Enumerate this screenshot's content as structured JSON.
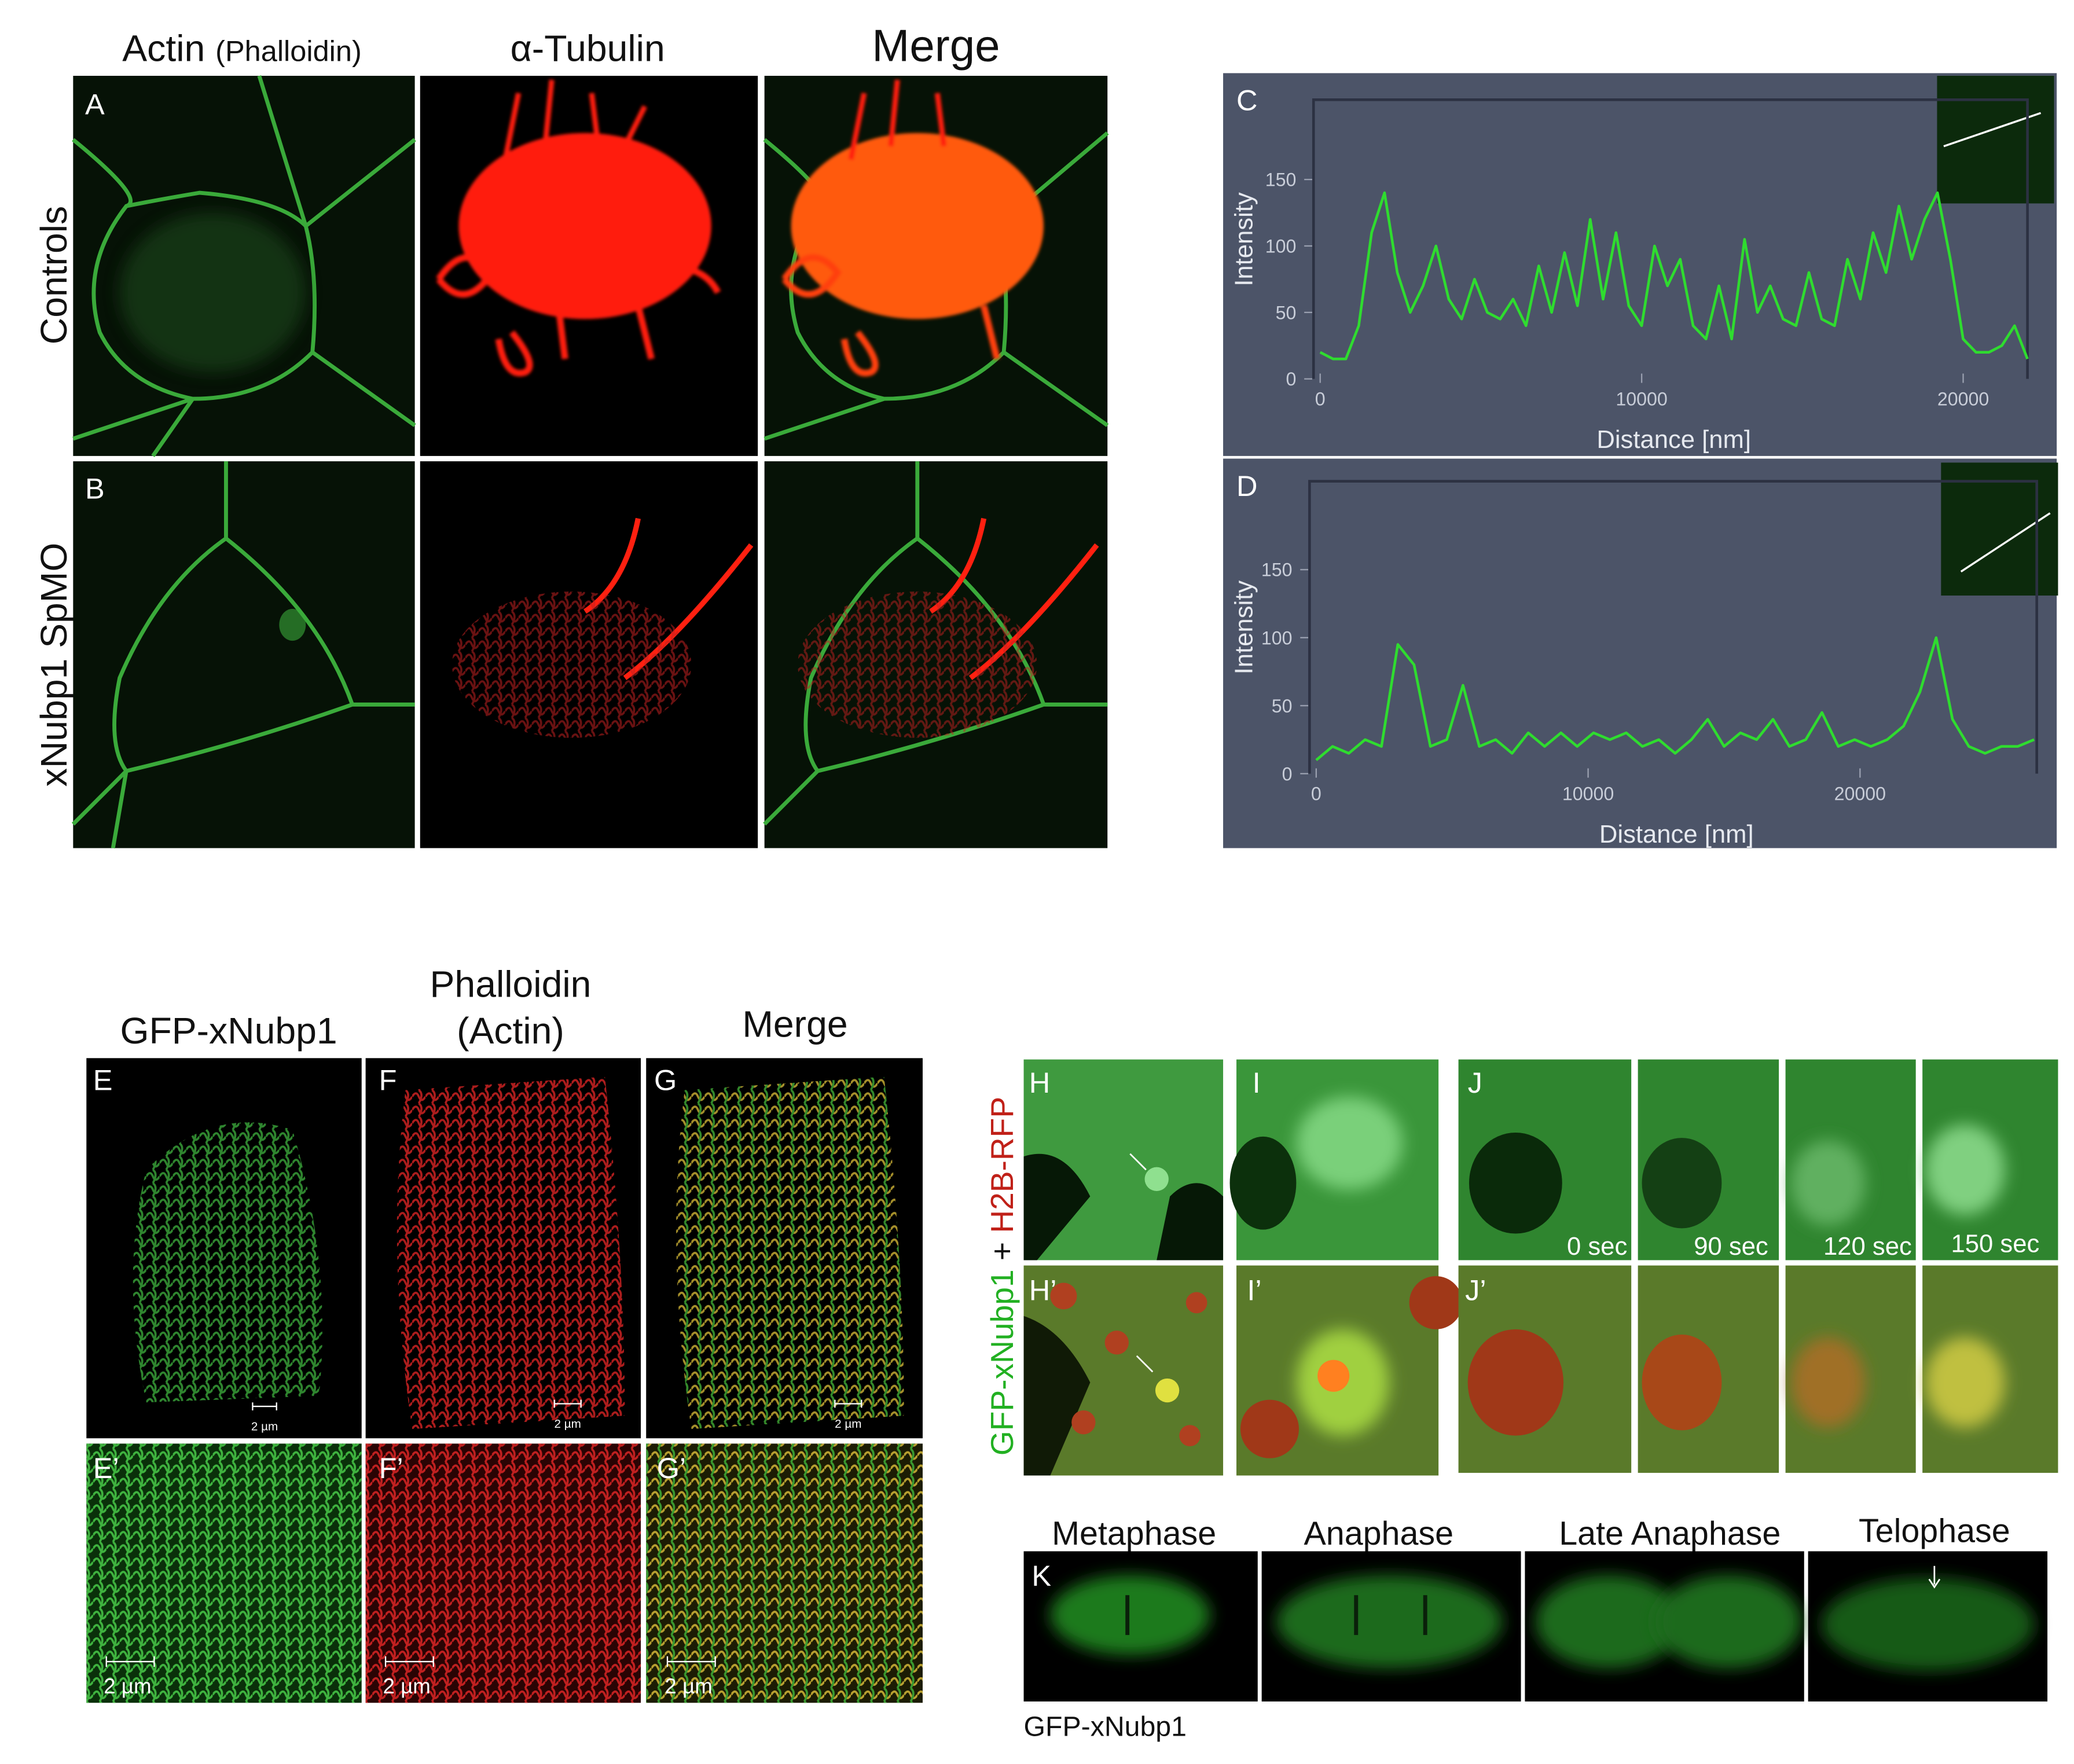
{
  "figure": {
    "actin_panel": {
      "column_titles": [
        "Actin",
        "(Phalloidin)",
        "α-Tubulin",
        "Merge"
      ],
      "row_labels": [
        "Controls",
        "xNubp1 SpMO"
      ],
      "panel_letters": [
        "A",
        "B"
      ]
    },
    "gfp_panel": {
      "column_titles": [
        "GFP-xNubp1",
        "Phalloidin",
        "(Actin)",
        "Merge"
      ],
      "panel_letters": [
        "E",
        "F",
        "G",
        "E’",
        "F’",
        "G’"
      ],
      "scale_bars": [
        "2 µm",
        "2 µm",
        "2 µm",
        "2 µm",
        "2 µm",
        "2 µm"
      ]
    },
    "live_panel": {
      "side_label": [
        "GFP-xNubp1",
        "+",
        "H2B-RFP"
      ],
      "panel_letters": [
        "H",
        "I",
        "J",
        "H’",
        "I’",
        "J’"
      ],
      "times": [
        "0 sec",
        "90 sec",
        "120 sec",
        "150 sec"
      ]
    },
    "mitosis_panel": {
      "panel_letter": "K",
      "stages": [
        "Metaphase",
        "Anaphase",
        "Late Anaphase",
        "Telophase"
      ],
      "caption": "GFP-xNubp1"
    }
  },
  "chart_data": [
    {
      "type": "line",
      "label": "C",
      "xlabel": "Distance [nm]",
      "ylabel": "Intensity",
      "color": "#2fdc2f",
      "x": [
        0,
        400,
        800,
        1200,
        1600,
        2000,
        2400,
        2800,
        3200,
        3600,
        4000,
        4400,
        4800,
        5200,
        5600,
        6000,
        6400,
        6800,
        7200,
        7600,
        8000,
        8400,
        8800,
        9200,
        9600,
        10000,
        10400,
        10800,
        11200,
        11600,
        12000,
        12400,
        12800,
        13200,
        13600,
        14000,
        14400,
        14800,
        15200,
        15600,
        16000,
        16400,
        16800,
        17200,
        17600,
        18000,
        18400,
        18800,
        19200,
        19600,
        20000,
        20400,
        20800,
        21200,
        21600,
        22000
      ],
      "values": [
        20,
        15,
        15,
        40,
        110,
        140,
        80,
        50,
        70,
        100,
        60,
        45,
        75,
        50,
        45,
        60,
        40,
        85,
        50,
        95,
        55,
        120,
        60,
        110,
        55,
        40,
        100,
        70,
        90,
        40,
        30,
        70,
        30,
        105,
        50,
        70,
        45,
        40,
        80,
        45,
        40,
        90,
        60,
        110,
        80,
        130,
        90,
        120,
        140,
        90,
        30,
        20,
        20,
        25,
        40,
        15
      ],
      "xlim": [
        0,
        22000
      ],
      "ylim": [
        0,
        210
      ],
      "xticks": [
        0,
        10000,
        20000
      ],
      "yticks": [
        0,
        50,
        100,
        150
      ]
    },
    {
      "type": "line",
      "label": "D",
      "xlabel": "Distance [nm]",
      "ylabel": "Intensity",
      "color": "#2fdc2f",
      "x": [
        0,
        600,
        1200,
        1800,
        2400,
        3000,
        3600,
        4200,
        4800,
        5400,
        6000,
        6600,
        7200,
        7800,
        8400,
        9000,
        9600,
        10200,
        10800,
        11400,
        12000,
        12600,
        13200,
        13800,
        14400,
        15000,
        15600,
        16200,
        16800,
        17400,
        18000,
        18600,
        19200,
        19800,
        20400,
        21000,
        21600,
        22200,
        22800,
        23400,
        24000,
        24600,
        25200,
        25800,
        26400
      ],
      "values": [
        10,
        20,
        15,
        25,
        20,
        95,
        80,
        20,
        25,
        65,
        20,
        25,
        15,
        30,
        20,
        30,
        20,
        30,
        25,
        30,
        20,
        25,
        15,
        25,
        40,
        20,
        30,
        25,
        40,
        20,
        25,
        45,
        20,
        25,
        20,
        25,
        35,
        60,
        100,
        40,
        20,
        15,
        20,
        20,
        25
      ],
      "xlim": [
        0,
        26500
      ],
      "ylim": [
        0,
        215
      ],
      "xticks": [
        0,
        10000,
        20000
      ],
      "yticks": [
        0,
        50,
        100,
        150
      ]
    }
  ]
}
